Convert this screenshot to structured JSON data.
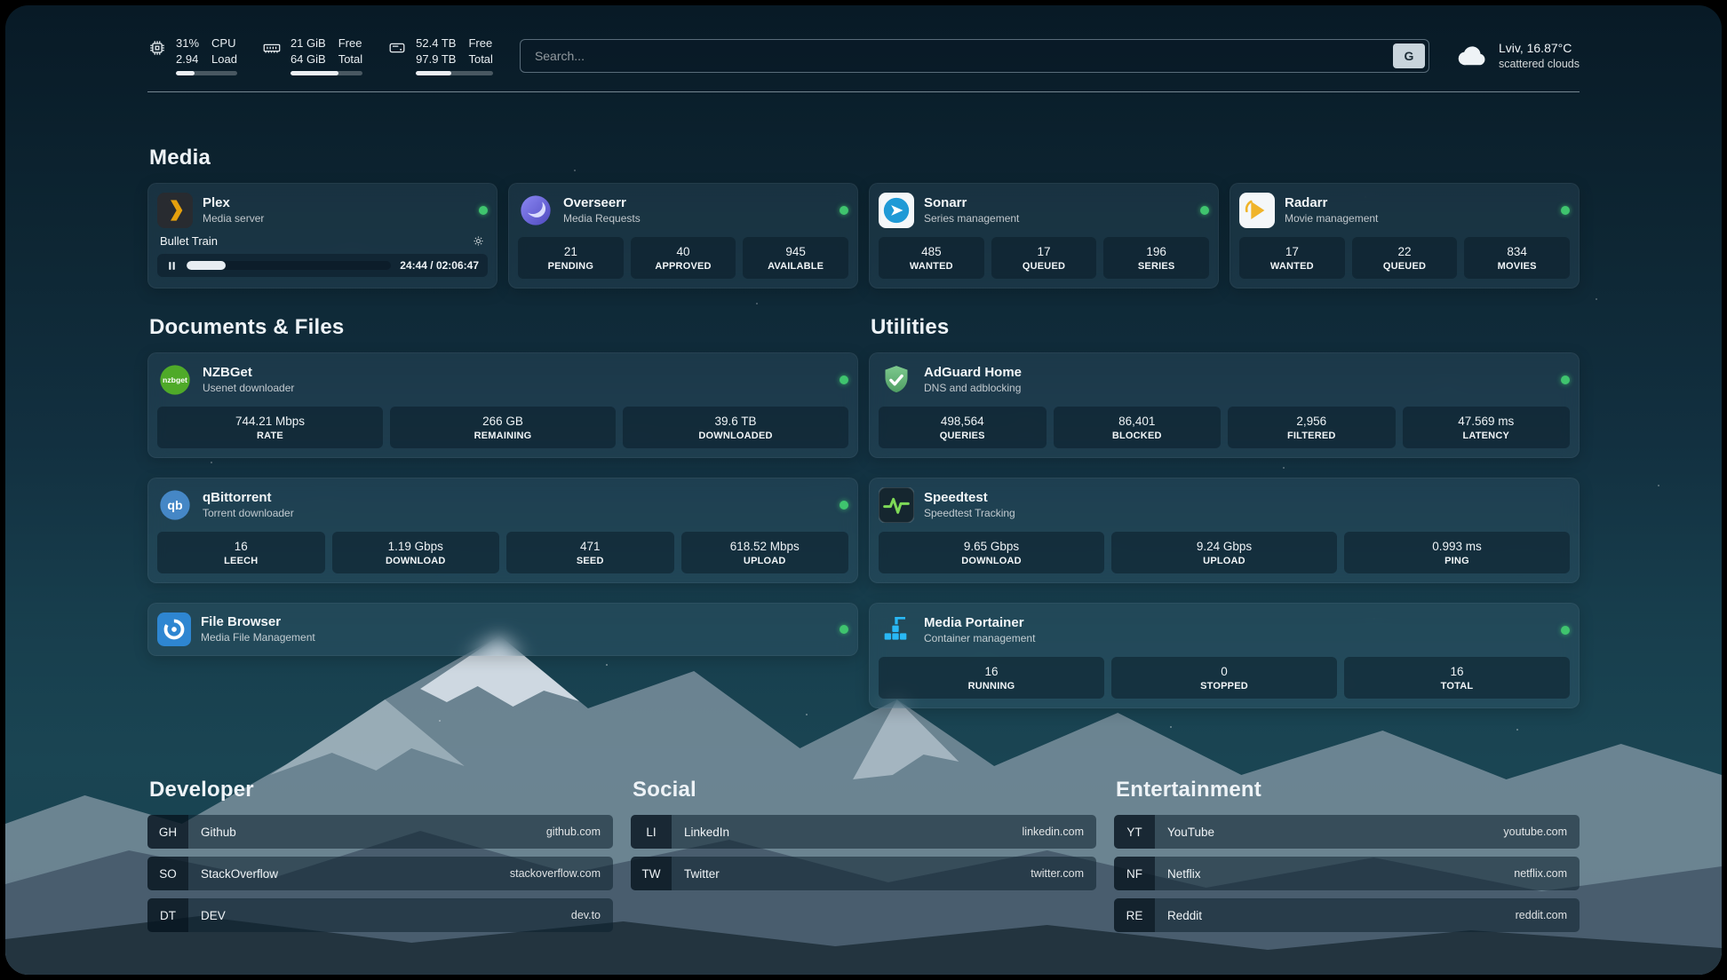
{
  "header": {
    "cpu": {
      "line1": "31%",
      "line2": "2.94",
      "label1": "CPU",
      "label2": "Load",
      "progress": 31
    },
    "memory": {
      "line1": "21 GiB",
      "line2": "64 GiB",
      "label1": "Free",
      "label2": "Total",
      "progress": 66
    },
    "disk": {
      "line1": "52.4 TB",
      "line2": "97.9 TB",
      "label1": "Free",
      "label2": "Total",
      "progress": 46
    },
    "search": {
      "placeholder": "Search...",
      "engine_label": "G"
    },
    "weather": {
      "location": "Lviv, 16.87°C",
      "condition": "scattered clouds"
    }
  },
  "media": {
    "title": "Media",
    "plex": {
      "title": "Plex",
      "subtitle": "Media server",
      "now_playing": "Bullet Train",
      "time": "24:44 / 02:06:47",
      "progress": 19
    },
    "overseerr": {
      "title": "Overseerr",
      "subtitle": "Media Requests",
      "stats": [
        {
          "value": "21",
          "label": "PENDING"
        },
        {
          "value": "40",
          "label": "APPROVED"
        },
        {
          "value": "945",
          "label": "AVAILABLE"
        }
      ]
    },
    "sonarr": {
      "title": "Sonarr",
      "subtitle": "Series management",
      "stats": [
        {
          "value": "485",
          "label": "WANTED"
        },
        {
          "value": "17",
          "label": "QUEUED"
        },
        {
          "value": "196",
          "label": "SERIES"
        }
      ]
    },
    "radarr": {
      "title": "Radarr",
      "subtitle": "Movie management",
      "stats": [
        {
          "value": "17",
          "label": "WANTED"
        },
        {
          "value": "22",
          "label": "QUEUED"
        },
        {
          "value": "834",
          "label": "MOVIES"
        }
      ]
    }
  },
  "documents": {
    "title": "Documents & Files",
    "nzbget": {
      "title": "NZBGet",
      "subtitle": "Usenet downloader",
      "stats": [
        {
          "value": "744.21 Mbps",
          "label": "RATE"
        },
        {
          "value": "266 GB",
          "label": "REMAINING"
        },
        {
          "value": "39.6 TB",
          "label": "DOWNLOADED"
        }
      ]
    },
    "qbittorrent": {
      "title": "qBittorrent",
      "subtitle": "Torrent downloader",
      "stats": [
        {
          "value": "16",
          "label": "LEECH"
        },
        {
          "value": "1.19 Gbps",
          "label": "DOWNLOAD"
        },
        {
          "value": "471",
          "label": "SEED"
        },
        {
          "value": "618.52 Mbps",
          "label": "UPLOAD"
        }
      ]
    },
    "filebrowser": {
      "title": "File Browser",
      "subtitle": "Media File Management"
    }
  },
  "utilities": {
    "title": "Utilities",
    "adguard": {
      "title": "AdGuard Home",
      "subtitle": "DNS and adblocking",
      "stats": [
        {
          "value": "498,564",
          "label": "QUERIES"
        },
        {
          "value": "86,401",
          "label": "BLOCKED"
        },
        {
          "value": "2,956",
          "label": "FILTERED"
        },
        {
          "value": "47.569 ms",
          "label": "LATENCY"
        }
      ]
    },
    "speedtest": {
      "title": "Speedtest",
      "subtitle": "Speedtest Tracking",
      "stats": [
        {
          "value": "9.65 Gbps",
          "label": "DOWNLOAD"
        },
        {
          "value": "9.24 Gbps",
          "label": "UPLOAD"
        },
        {
          "value": "0.993 ms",
          "label": "PING"
        }
      ]
    },
    "portainer": {
      "title": "Media Portainer",
      "subtitle": "Container management",
      "stats": [
        {
          "value": "16",
          "label": "RUNNING"
        },
        {
          "value": "0",
          "label": "STOPPED"
        },
        {
          "value": "16",
          "label": "TOTAL"
        }
      ]
    }
  },
  "bookmarks": {
    "developer": {
      "title": "Developer",
      "items": [
        {
          "abbr": "GH",
          "name": "Github",
          "url": "github.com"
        },
        {
          "abbr": "SO",
          "name": "StackOverflow",
          "url": "stackoverflow.com"
        },
        {
          "abbr": "DT",
          "name": "DEV",
          "url": "dev.to"
        }
      ]
    },
    "social": {
      "title": "Social",
      "items": [
        {
          "abbr": "LI",
          "name": "LinkedIn",
          "url": "linkedin.com"
        },
        {
          "abbr": "TW",
          "name": "Twitter",
          "url": "twitter.com"
        }
      ]
    },
    "entertainment": {
      "title": "Entertainment",
      "items": [
        {
          "abbr": "YT",
          "name": "YouTube",
          "url": "youtube.com"
        },
        {
          "abbr": "NF",
          "name": "Netflix",
          "url": "netflix.com"
        },
        {
          "abbr": "RE",
          "name": "Reddit",
          "url": "reddit.com"
        }
      ]
    }
  },
  "colors": {
    "status_online": "#3fc46e",
    "plex_gold": "#e5a00d",
    "radarr_gold": "#f0b429",
    "sonarr_blue": "#1f9ad6",
    "overseerr_purple": "#5f5bd0",
    "nzbget_green": "#4faa29",
    "qbittorrent_blue": "#4587c6",
    "filebrowser_blue": "#2e86d1",
    "adguard_green": "#67b279",
    "speedtest_green": "#7ed957",
    "portainer_blue": "#29b8f5"
  }
}
